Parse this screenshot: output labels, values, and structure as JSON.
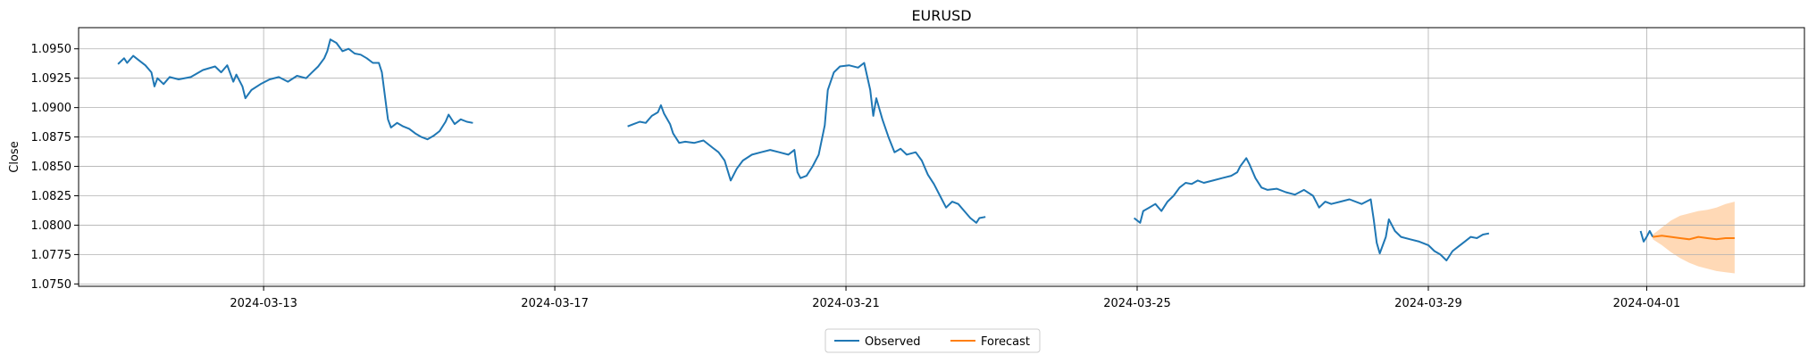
{
  "chart_data": {
    "type": "line",
    "title": "EURUSD",
    "xlabel": "",
    "ylabel": "Close",
    "xlim": [
      "2024-03-10T11:00",
      "2024-04-03T04:00"
    ],
    "ylim": [
      1.0748,
      1.0968
    ],
    "grid": true,
    "legend": {
      "placement": "bottom-center",
      "columns": 2
    },
    "x_ticks": [
      "2024-03-13",
      "2024-03-17",
      "2024-03-21",
      "2024-03-25",
      "2024-03-29",
      "2024-04-01"
    ],
    "y_ticks": [
      "1.0750",
      "1.0775",
      "1.0800",
      "1.0825",
      "1.0850",
      "1.0875",
      "1.0900",
      "1.0925",
      "1.0950"
    ],
    "colors": {
      "observed": "#1f77b4",
      "forecast": "#ff7f0e",
      "forecast_band": "#ffbf86"
    },
    "series": [
      {
        "name": "Observed",
        "segments": [
          [
            [
              "2024-03-11T00:00",
              1.0937
            ],
            [
              "2024-03-11T02:00",
              1.0942
            ],
            [
              "2024-03-11T03:00",
              1.0938
            ],
            [
              "2024-03-11T05:00",
              1.0944
            ],
            [
              "2024-03-11T07:00",
              1.094
            ],
            [
              "2024-03-11T09:00",
              1.0936
            ],
            [
              "2024-03-11T11:00",
              1.093
            ],
            [
              "2024-03-11T12:00",
              1.0918
            ],
            [
              "2024-03-11T13:00",
              1.0925
            ],
            [
              "2024-03-11T15:00",
              1.092
            ],
            [
              "2024-03-11T17:00",
              1.0926
            ],
            [
              "2024-03-11T20:00",
              1.0924
            ],
            [
              "2024-03-12T00:00",
              1.0926
            ],
            [
              "2024-03-12T04:00",
              1.0932
            ],
            [
              "2024-03-12T08:00",
              1.0935
            ],
            [
              "2024-03-12T10:00",
              1.093
            ],
            [
              "2024-03-12T12:00",
              1.0936
            ],
            [
              "2024-03-12T14:00",
              1.0922
            ],
            [
              "2024-03-12T15:00",
              1.0928
            ],
            [
              "2024-03-12T17:00",
              1.0918
            ],
            [
              "2024-03-12T18:00",
              1.0908
            ],
            [
              "2024-03-12T20:00",
              1.0915
            ],
            [
              "2024-03-12T23:00",
              1.092
            ],
            [
              "2024-03-13T02:00",
              1.0924
            ],
            [
              "2024-03-13T05:00",
              1.0926
            ],
            [
              "2024-03-13T08:00",
              1.0922
            ],
            [
              "2024-03-13T11:00",
              1.0927
            ],
            [
              "2024-03-13T14:00",
              1.0925
            ],
            [
              "2024-03-13T16:00",
              1.093
            ],
            [
              "2024-03-13T18:00",
              1.0935
            ],
            [
              "2024-03-13T20:00",
              1.0942
            ],
            [
              "2024-03-13T21:00",
              1.0948
            ],
            [
              "2024-03-13T22:00",
              1.0958
            ],
            [
              "2024-03-14T00:00",
              1.0955
            ],
            [
              "2024-03-14T02:00",
              1.0948
            ],
            [
              "2024-03-14T04:00",
              1.095
            ],
            [
              "2024-03-14T06:00",
              1.0946
            ],
            [
              "2024-03-14T08:00",
              1.0945
            ],
            [
              "2024-03-14T10:00",
              1.0942
            ],
            [
              "2024-03-14T12:00",
              1.0938
            ],
            [
              "2024-03-14T14:00",
              1.0938
            ],
            [
              "2024-03-14T15:00",
              1.093
            ],
            [
              "2024-03-14T16:00",
              1.091
            ],
            [
              "2024-03-14T17:00",
              1.089
            ],
            [
              "2024-03-14T18:00",
              1.0883
            ],
            [
              "2024-03-14T20:00",
              1.0887
            ],
            [
              "2024-03-14T22:00",
              1.0884
            ],
            [
              "2024-03-15T00:00",
              1.0882
            ],
            [
              "2024-03-15T02:00",
              1.0878
            ],
            [
              "2024-03-15T04:00",
              1.0875
            ],
            [
              "2024-03-15T06:00",
              1.0873
            ],
            [
              "2024-03-15T08:00",
              1.0876
            ],
            [
              "2024-03-15T10:00",
              1.088
            ],
            [
              "2024-03-15T12:00",
              1.0888
            ],
            [
              "2024-03-15T13:00",
              1.0894
            ],
            [
              "2024-03-15T15:00",
              1.0886
            ],
            [
              "2024-03-15T17:00",
              1.089
            ],
            [
              "2024-03-15T19:00",
              1.0888
            ],
            [
              "2024-03-15T21:00",
              1.0887
            ]
          ],
          [
            [
              "2024-03-18T00:00",
              1.0884
            ],
            [
              "2024-03-18T02:00",
              1.0886
            ],
            [
              "2024-03-18T04:00",
              1.0888
            ],
            [
              "2024-03-18T06:00",
              1.0887
            ],
            [
              "2024-03-18T08:00",
              1.0893
            ],
            [
              "2024-03-18T10:00",
              1.0896
            ],
            [
              "2024-03-18T11:00",
              1.0902
            ],
            [
              "2024-03-18T12:00",
              1.0895
            ],
            [
              "2024-03-18T14:00",
              1.0886
            ],
            [
              "2024-03-18T15:00",
              1.0878
            ],
            [
              "2024-03-18T17:00",
              1.087
            ],
            [
              "2024-03-18T19:00",
              1.0871
            ],
            [
              "2024-03-18T22:00",
              1.087
            ],
            [
              "2024-03-19T01:00",
              1.0872
            ],
            [
              "2024-03-19T04:00",
              1.0866
            ],
            [
              "2024-03-19T06:00",
              1.0862
            ],
            [
              "2024-03-19T08:00",
              1.0855
            ],
            [
              "2024-03-19T10:00",
              1.0838
            ],
            [
              "2024-03-19T12:00",
              1.0848
            ],
            [
              "2024-03-19T14:00",
              1.0855
            ],
            [
              "2024-03-19T17:00",
              1.086
            ],
            [
              "2024-03-19T20:00",
              1.0862
            ],
            [
              "2024-03-19T23:00",
              1.0864
            ],
            [
              "2024-03-20T02:00",
              1.0862
            ],
            [
              "2024-03-20T05:00",
              1.086
            ],
            [
              "2024-03-20T07:00",
              1.0864
            ],
            [
              "2024-03-20T08:00",
              1.0845
            ],
            [
              "2024-03-20T09:00",
              1.084
            ],
            [
              "2024-03-20T11:00",
              1.0842
            ],
            [
              "2024-03-20T13:00",
              1.085
            ],
            [
              "2024-03-20T15:00",
              1.086
            ],
            [
              "2024-03-20T17:00",
              1.0885
            ],
            [
              "2024-03-20T18:00",
              1.0915
            ],
            [
              "2024-03-20T20:00",
              1.093
            ],
            [
              "2024-03-20T22:00",
              1.0935
            ],
            [
              "2024-03-21T01:00",
              1.0936
            ],
            [
              "2024-03-21T04:00",
              1.0934
            ],
            [
              "2024-03-21T06:00",
              1.0938
            ],
            [
              "2024-03-21T08:00",
              1.0915
            ],
            [
              "2024-03-21T09:00",
              1.0893
            ],
            [
              "2024-03-21T10:00",
              1.0908
            ],
            [
              "2024-03-21T12:00",
              1.089
            ],
            [
              "2024-03-21T14:00",
              1.0875
            ],
            [
              "2024-03-21T16:00",
              1.0862
            ],
            [
              "2024-03-21T18:00",
              1.0865
            ],
            [
              "2024-03-21T20:00",
              1.086
            ],
            [
              "2024-03-21T23:00",
              1.0862
            ],
            [
              "2024-03-22T01:00",
              1.0855
            ],
            [
              "2024-03-22T03:00",
              1.0843
            ],
            [
              "2024-03-22T05:00",
              1.0835
            ],
            [
              "2024-03-22T07:00",
              1.0825
            ],
            [
              "2024-03-22T09:00",
              1.0815
            ],
            [
              "2024-03-22T11:00",
              1.082
            ],
            [
              "2024-03-22T13:00",
              1.0818
            ],
            [
              "2024-03-22T15:00",
              1.0812
            ],
            [
              "2024-03-22T17:00",
              1.0806
            ],
            [
              "2024-03-22T19:00",
              1.0802
            ],
            [
              "2024-03-22T20:00",
              1.0806
            ],
            [
              "2024-03-22T22:00",
              1.0807
            ]
          ],
          [
            [
              "2024-03-24T23:00",
              1.0806
            ],
            [
              "2024-03-25T01:00",
              1.0802
            ],
            [
              "2024-03-25T02:00",
              1.0812
            ],
            [
              "2024-03-25T04:00",
              1.0815
            ],
            [
              "2024-03-25T06:00",
              1.0818
            ],
            [
              "2024-03-25T08:00",
              1.0812
            ],
            [
              "2024-03-25T10:00",
              1.082
            ],
            [
              "2024-03-25T12:00",
              1.0825
            ],
            [
              "2024-03-25T14:00",
              1.0832
            ],
            [
              "2024-03-25T16:00",
              1.0836
            ],
            [
              "2024-03-25T18:00",
              1.0835
            ],
            [
              "2024-03-25T20:00",
              1.0838
            ],
            [
              "2024-03-25T22:00",
              1.0836
            ],
            [
              "2024-03-26T01:00",
              1.0838
            ],
            [
              "2024-03-26T04:00",
              1.084
            ],
            [
              "2024-03-26T07:00",
              1.0842
            ],
            [
              "2024-03-26T09:00",
              1.0845
            ],
            [
              "2024-03-26T10:00",
              1.085
            ],
            [
              "2024-03-26T12:00",
              1.0857
            ],
            [
              "2024-03-26T13:00",
              1.0852
            ],
            [
              "2024-03-26T15:00",
              1.084
            ],
            [
              "2024-03-26T17:00",
              1.0832
            ],
            [
              "2024-03-26T19:00",
              1.083
            ],
            [
              "2024-03-26T22:00",
              1.0831
            ],
            [
              "2024-03-27T01:00",
              1.0828
            ],
            [
              "2024-03-27T04:00",
              1.0826
            ],
            [
              "2024-03-27T07:00",
              1.083
            ],
            [
              "2024-03-27T10:00",
              1.0825
            ],
            [
              "2024-03-27T12:00",
              1.0815
            ],
            [
              "2024-03-27T14:00",
              1.082
            ],
            [
              "2024-03-27T16:00",
              1.0818
            ],
            [
              "2024-03-27T19:00",
              1.082
            ],
            [
              "2024-03-27T22:00",
              1.0822
            ],
            [
              "2024-03-28T02:00",
              1.0818
            ],
            [
              "2024-03-28T05:00",
              1.0822
            ],
            [
              "2024-03-28T06:00",
              1.0805
            ],
            [
              "2024-03-28T07:00",
              1.0785
            ],
            [
              "2024-03-28T08:00",
              1.0776
            ],
            [
              "2024-03-28T10:00",
              1.079
            ],
            [
              "2024-03-28T11:00",
              1.0805
            ],
            [
              "2024-03-28T13:00",
              1.0795
            ],
            [
              "2024-03-28T15:00",
              1.079
            ],
            [
              "2024-03-28T18:00",
              1.0788
            ],
            [
              "2024-03-28T21:00",
              1.0786
            ],
            [
              "2024-03-29T00:00",
              1.0783
            ],
            [
              "2024-03-29T02:00",
              1.0778
            ],
            [
              "2024-03-29T04:00",
              1.0775
            ],
            [
              "2024-03-29T06:00",
              1.077
            ],
            [
              "2024-03-29T08:00",
              1.0778
            ],
            [
              "2024-03-29T10:00",
              1.0782
            ],
            [
              "2024-03-29T12:00",
              1.0786
            ],
            [
              "2024-03-29T14:00",
              1.079
            ],
            [
              "2024-03-29T16:00",
              1.0789
            ],
            [
              "2024-03-29T18:00",
              1.0792
            ],
            [
              "2024-03-29T20:00",
              1.0793
            ]
          ],
          [
            [
              "2024-03-31T22:00",
              1.0795
            ],
            [
              "2024-03-31T23:00",
              1.0786
            ],
            [
              "2024-04-01T00:00",
              1.079
            ],
            [
              "2024-04-01T01:00",
              1.0795
            ],
            [
              "2024-04-01T02:00",
              1.079
            ]
          ]
        ]
      },
      {
        "name": "Forecast",
        "points": [
          [
            "2024-04-01T02:00",
            1.079
          ],
          [
            "2024-04-01T05:00",
            1.0791
          ],
          [
            "2024-04-01T08:00",
            1.079
          ],
          [
            "2024-04-01T11:00",
            1.0789
          ],
          [
            "2024-04-01T14:00",
            1.0788
          ],
          [
            "2024-04-01T17:00",
            1.079
          ],
          [
            "2024-04-01T20:00",
            1.0789
          ],
          [
            "2024-04-01T23:00",
            1.0788
          ],
          [
            "2024-04-02T02:00",
            1.0789
          ],
          [
            "2024-04-02T05:00",
            1.0789
          ]
        ],
        "upper": [
          1.0792,
          1.0798,
          1.0804,
          1.0808,
          1.081,
          1.0812,
          1.0813,
          1.0815,
          1.0818,
          1.082
        ],
        "lower": [
          1.0788,
          1.0783,
          1.0777,
          1.0772,
          1.0768,
          1.0765,
          1.0763,
          1.0761,
          1.076,
          1.0759
        ]
      }
    ]
  }
}
